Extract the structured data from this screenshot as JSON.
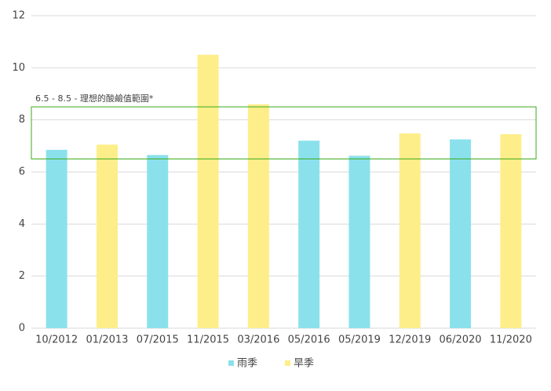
{
  "chart_data": {
    "type": "bar",
    "categories": [
      "10/2012",
      "01/2013",
      "07/2015",
      "11/2015",
      "03/2016",
      "05/2016",
      "05/2019",
      "12/2019",
      "06/2020",
      "11/2020"
    ],
    "series": [
      {
        "name": "雨季",
        "color": "#8ae1ec",
        "values": [
          6.85,
          null,
          6.65,
          null,
          null,
          7.2,
          6.62,
          null,
          7.25,
          null
        ]
      },
      {
        "name": "旱季",
        "color": "#fdee8a",
        "values": [
          null,
          7.05,
          null,
          10.5,
          8.6,
          null,
          null,
          7.48,
          null,
          7.45
        ]
      }
    ],
    "ylim": [
      0,
      12
    ],
    "yticks": [
      0,
      2,
      4,
      6,
      8,
      10,
      12
    ],
    "grid": true,
    "band": {
      "range": [
        6.5,
        8.5
      ],
      "label": "6.5 - 8.5 - 理想的酸鹼值範圍*",
      "color": "#3aaa1a"
    },
    "legend": "bottom"
  }
}
